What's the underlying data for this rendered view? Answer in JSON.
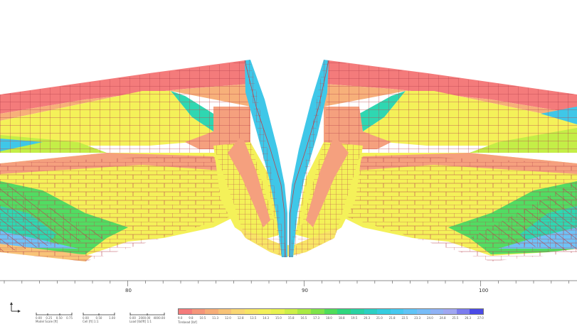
{
  "ruler": {
    "ticks": [
      "80",
      "90",
      "100"
    ]
  },
  "scale_bars": [
    {
      "numbers": [
        "0.00",
        "0.25",
        "0.50",
        "0.75"
      ],
      "caption": "Model Scale [ft]"
    },
    {
      "numbers": [
        "0.00",
        "0.50",
        "1.00"
      ],
      "caption": "Cell [ft] 1:1"
    },
    {
      "numbers": [
        "0.00",
        "2000.00",
        "4000.00"
      ],
      "caption": "Load [lbf/ft] 1:1"
    }
  ],
  "legend": {
    "caption": "Tirebead [lbf]",
    "ticks": [
      "9.0",
      "9.8",
      "10.5",
      "11.3",
      "12.0",
      "12.8",
      "13.5",
      "14.3",
      "15.0",
      "15.8",
      "16.5",
      "17.3",
      "18.0",
      "18.8",
      "19.5",
      "20.3",
      "21.0",
      "21.8",
      "22.5",
      "23.3",
      "24.0",
      "24.8",
      "25.5",
      "26.3",
      "27.0"
    ],
    "colors": [
      "#f47b7b",
      "#f5967a",
      "#f7ad78",
      "#f8c377",
      "#fad774",
      "#f8e566",
      "#f3f05a",
      "#e8f250",
      "#cdef48",
      "#a9ea44",
      "#7fe44a",
      "#4fdd5a",
      "#2fd77e",
      "#29d3a3",
      "#2bd0c3",
      "#35cde0",
      "#47c9f0",
      "#5fc4f7",
      "#78bdf8",
      "#8fb2f5",
      "#a0a7f1",
      "#7b7cee",
      "#4a4ae6"
    ]
  },
  "mesh_colors": {
    "edge": "#b8454f",
    "red": "#f47b7b",
    "salmon": "#f5a07e",
    "orange": "#f8c378",
    "yellow": "#f4f159",
    "lime": "#c4ee47",
    "green": "#52dc62",
    "teal": "#2fd7b1",
    "cyan": "#3fc7e8",
    "lightblue": "#6fc2f6",
    "blue": "#4b47e6"
  }
}
